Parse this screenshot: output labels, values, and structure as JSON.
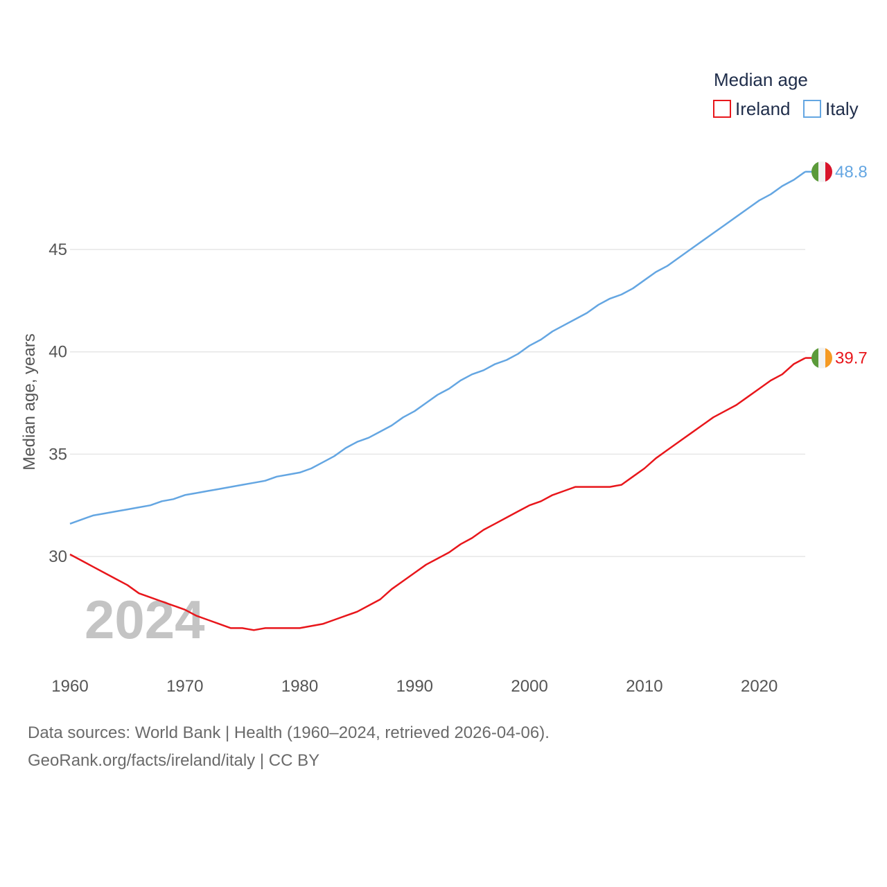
{
  "colors": {
    "ireland": "#e8161b",
    "italy": "#64a6e2",
    "grid": "#e6e6e6",
    "flag_green": "#5b9a3a",
    "flag_white": "#f2f2f2",
    "flag_orange": "#f59a23",
    "flag_red": "#d8142a"
  },
  "chart_data": {
    "type": "line",
    "title": "",
    "xlabel": "",
    "ylabel": "Median age, years",
    "xlim": [
      1960,
      2024
    ],
    "ylim": [
      25,
      50
    ],
    "xticks": [
      1960,
      1970,
      1980,
      1990,
      2000,
      2010,
      2020
    ],
    "yticks": [
      30,
      35,
      40,
      45
    ],
    "grid": true,
    "legend": {
      "title": "Median age",
      "placement": "top-right",
      "entries": [
        "Ireland",
        "Italy"
      ]
    },
    "watermark_year": "2024",
    "x": [
      1960,
      1961,
      1962,
      1963,
      1964,
      1965,
      1966,
      1967,
      1968,
      1969,
      1970,
      1971,
      1972,
      1973,
      1974,
      1975,
      1976,
      1977,
      1978,
      1979,
      1980,
      1981,
      1982,
      1983,
      1984,
      1985,
      1986,
      1987,
      1988,
      1989,
      1990,
      1991,
      1992,
      1993,
      1994,
      1995,
      1996,
      1997,
      1998,
      1999,
      2000,
      2001,
      2002,
      2003,
      2004,
      2005,
      2006,
      2007,
      2008,
      2009,
      2010,
      2011,
      2012,
      2013,
      2014,
      2015,
      2016,
      2017,
      2018,
      2019,
      2020,
      2021,
      2022,
      2023,
      2024
    ],
    "series": [
      {
        "name": "Ireland",
        "end_label": "39.7",
        "values": [
          30.1,
          29.8,
          29.5,
          29.2,
          28.9,
          28.6,
          28.2,
          28.0,
          27.8,
          27.6,
          27.4,
          27.1,
          26.9,
          26.7,
          26.5,
          26.5,
          26.4,
          26.5,
          26.5,
          26.5,
          26.5,
          26.6,
          26.7,
          26.9,
          27.1,
          27.3,
          27.6,
          27.9,
          28.4,
          28.8,
          29.2,
          29.6,
          29.9,
          30.2,
          30.6,
          30.9,
          31.3,
          31.6,
          31.9,
          32.2,
          32.5,
          32.7,
          33.0,
          33.2,
          33.4,
          33.4,
          33.4,
          33.4,
          33.5,
          33.9,
          34.3,
          34.8,
          35.2,
          35.6,
          36.0,
          36.4,
          36.8,
          37.1,
          37.4,
          37.8,
          38.2,
          38.6,
          38.9,
          39.4,
          39.7
        ]
      },
      {
        "name": "Italy",
        "end_label": "48.8",
        "values": [
          31.6,
          31.8,
          32.0,
          32.1,
          32.2,
          32.3,
          32.4,
          32.5,
          32.7,
          32.8,
          33.0,
          33.1,
          33.2,
          33.3,
          33.4,
          33.5,
          33.6,
          33.7,
          33.9,
          34.0,
          34.1,
          34.3,
          34.6,
          34.9,
          35.3,
          35.6,
          35.8,
          36.1,
          36.4,
          36.8,
          37.1,
          37.5,
          37.9,
          38.2,
          38.6,
          38.9,
          39.1,
          39.4,
          39.6,
          39.9,
          40.3,
          40.6,
          41.0,
          41.3,
          41.6,
          41.9,
          42.3,
          42.6,
          42.8,
          43.1,
          43.5,
          43.9,
          44.2,
          44.6,
          45.0,
          45.4,
          45.8,
          46.2,
          46.6,
          47.0,
          47.4,
          47.7,
          48.1,
          48.4,
          48.8
        ]
      }
    ]
  },
  "footer": {
    "sources": "Data sources: World Bank | Health (1960–2024, retrieved 2026-04-06).",
    "link": "GeoRank.org/facts/ireland/italy | CC BY"
  }
}
